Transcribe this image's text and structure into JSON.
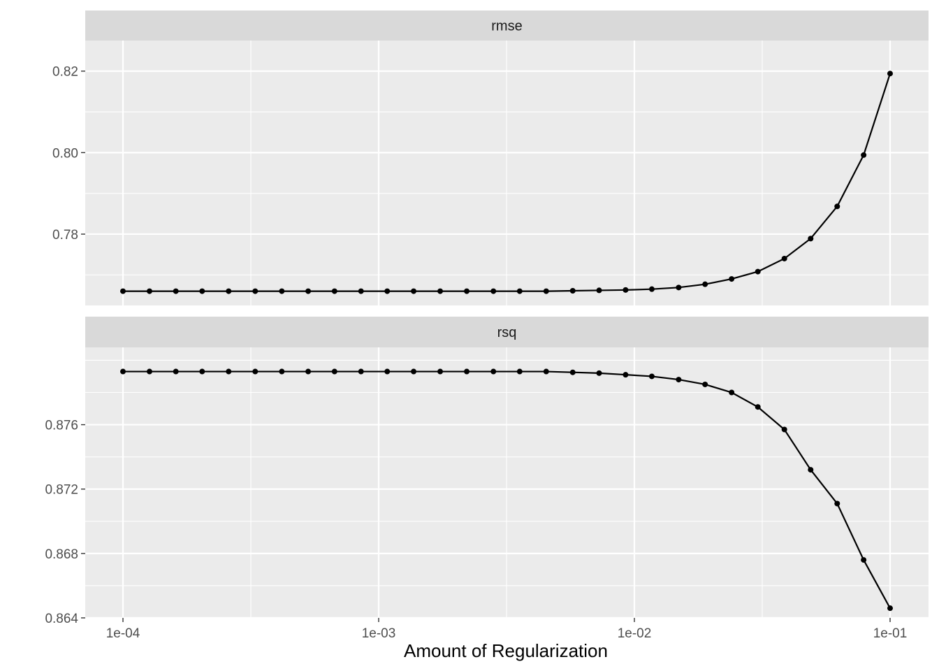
{
  "chart_data": {
    "type": "line",
    "xlabel": "Amount of Regularization",
    "x_scale": "log10",
    "xlim": [
      0.0001,
      0.1
    ],
    "x_ticks": [
      {
        "value": 0.0001,
        "label": "1e-04"
      },
      {
        "value": 0.001,
        "label": "1e-03"
      },
      {
        "value": 0.01,
        "label": "1e-02"
      },
      {
        "value": 0.1,
        "label": "1e-01"
      }
    ],
    "grid": true,
    "x": [
      0.0001,
      0.000127,
      0.000161,
      0.000204,
      0.000259,
      0.000329,
      0.000418,
      0.00053,
      0.000672,
      0.000853,
      0.00108,
      0.00137,
      0.00174,
      0.00221,
      0.00281,
      0.00356,
      0.00452,
      0.00574,
      0.00728,
      0.00924,
      0.0117,
      0.0149,
      0.0189,
      0.024,
      0.0304,
      0.0386,
      0.0489,
      0.0621,
      0.0788,
      0.1
    ],
    "panels": [
      {
        "strip": "rmse",
        "ylim": [
          0.7625,
          0.8275
        ],
        "y_ticks": [
          {
            "value": 0.78,
            "label": "0.78"
          },
          {
            "value": 0.8,
            "label": "0.80"
          },
          {
            "value": 0.82,
            "label": "0.82"
          }
        ],
        "values": [
          0.766,
          0.766,
          0.766,
          0.766,
          0.766,
          0.766,
          0.766,
          0.766,
          0.766,
          0.766,
          0.766,
          0.766,
          0.766,
          0.766,
          0.766,
          0.766,
          0.766,
          0.7661,
          0.7662,
          0.7663,
          0.7665,
          0.7669,
          0.7677,
          0.769,
          0.7708,
          0.774,
          0.7789,
          0.7868,
          0.7994,
          0.8194
        ]
      },
      {
        "strip": "rsq",
        "ylim": [
          0.864,
          0.8808
        ],
        "y_ticks": [
          {
            "value": 0.864,
            "label": "0.864"
          },
          {
            "value": 0.868,
            "label": "0.868"
          },
          {
            "value": 0.872,
            "label": "0.872"
          },
          {
            "value": 0.876,
            "label": "0.876"
          }
        ],
        "values": [
          0.8793,
          0.8793,
          0.8793,
          0.8793,
          0.8793,
          0.8793,
          0.8793,
          0.8793,
          0.8793,
          0.8793,
          0.8793,
          0.8793,
          0.8793,
          0.8793,
          0.8793,
          0.8793,
          0.8793,
          0.87925,
          0.8792,
          0.8791,
          0.879,
          0.8788,
          0.8785,
          0.878,
          0.8771,
          0.8757,
          0.8732,
          0.8711,
          0.8676,
          0.8646
        ]
      }
    ]
  }
}
